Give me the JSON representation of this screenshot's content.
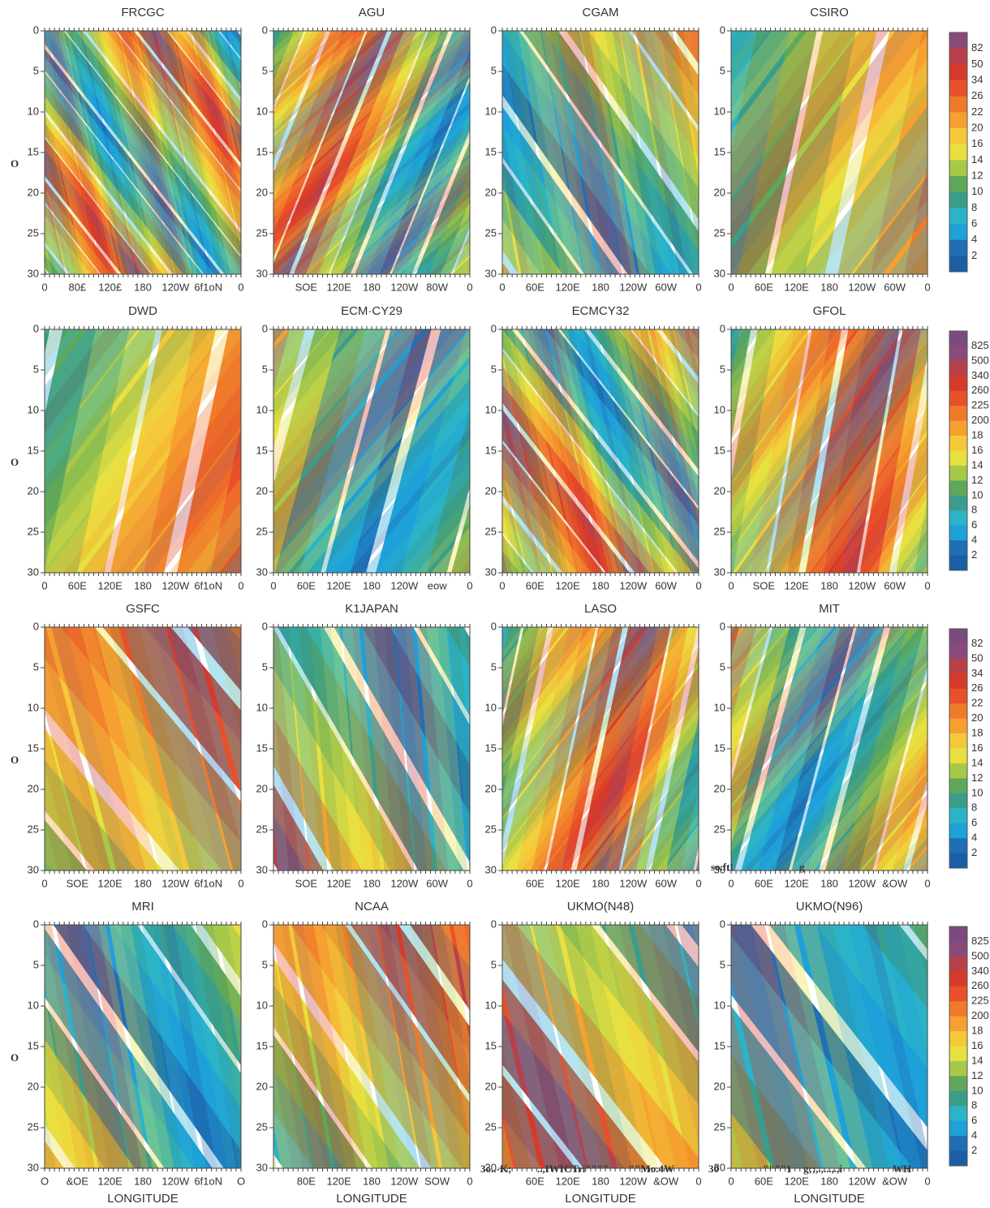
{
  "panels": [
    {
      "title": "FRCGC",
      "xticks": [
        "0",
        "80£",
        "120£",
        "180",
        "120W",
        "6f1oN",
        "0"
      ]
    },
    {
      "title": "AGU",
      "xticks": [
        "SOE",
        "120E",
        "180",
        "120W",
        "80W",
        "0"
      ]
    },
    {
      "title": "CGAM",
      "xticks": [
        "0",
        "60E",
        "120E",
        "180",
        "120W",
        "60W",
        "0"
      ]
    },
    {
      "title": "CSIRO",
      "xticks": [
        "0",
        "60E",
        "120E",
        "180",
        "120W",
        "60W",
        "0"
      ]
    },
    {
      "title": "DWD",
      "xticks": [
        "0",
        "60E",
        "120E",
        "180",
        "120W",
        "6f1oN",
        "0"
      ]
    },
    {
      "title": "ECM·CY29",
      "xticks": [
        "0",
        "60E",
        "120E",
        "180",
        "120W",
        "eow",
        "0"
      ]
    },
    {
      "title": "ECMCY32",
      "xticks": [
        "0",
        "60E",
        "120E",
        "180",
        "120W",
        "60W",
        "0"
      ]
    },
    {
      "title": "GFOL",
      "xticks": [
        "0",
        "SOE",
        "120E",
        "180",
        "120W",
        "60W",
        "0"
      ]
    },
    {
      "title": "GSFC",
      "xticks": [
        "0",
        "SOE",
        "120E",
        "180",
        "120W",
        "6f1oN",
        "0"
      ]
    },
    {
      "title": "K1JAPAN",
      "xticks": [
        "SOE",
        "120E",
        "180",
        "120W",
        "60W",
        "0"
      ]
    },
    {
      "title": "LASO",
      "xticks": [
        "60E",
        "120E",
        "180",
        "120W",
        "60W",
        "0"
      ]
    },
    {
      "title": "MIT",
      "xticks": [
        "0",
        "60E",
        "120E",
        "180",
        "120W",
        "&OW",
        "0"
      ]
    },
    {
      "title": "MRI",
      "xticks": [
        "O",
        "&OE",
        "120E",
        "180",
        "120W",
        "6f1oN",
        "O"
      ]
    },
    {
      "title": "NCAA",
      "xticks": [
        "80E",
        "120E",
        "180",
        "120W",
        "SOW",
        "0"
      ]
    },
    {
      "title": "UKMO(N48)",
      "xticks": [
        "60E",
        "120E",
        "180",
        "120W",
        "&OW",
        "0"
      ]
    },
    {
      "title": "UKMO(N96)",
      "xticks": [
        "0",
        "60E",
        "120E",
        "180",
        "120W",
        "&OW",
        "0"
      ]
    }
  ],
  "yticks": [
    0,
    5,
    10,
    15,
    20,
    25,
    30
  ],
  "row_labels": [
    "O",
    "O",
    "O",
    "O"
  ],
  "xlabel": "LONGITUDE",
  "colorbars": [
    [
      "82",
      "50",
      "34",
      "26",
      "22",
      "20",
      "16",
      "14",
      "12",
      "10",
      "8",
      "6",
      "4",
      "2"
    ],
    [
      "825",
      "500",
      "340",
      "260",
      "225",
      "200",
      "18",
      "16",
      "14",
      "12",
      "10",
      "8",
      "6",
      "4",
      "2"
    ],
    [
      "82",
      "50",
      "34",
      "26",
      "22",
      "20",
      "18",
      "16",
      "14",
      "12",
      "10",
      "8",
      "6",
      "4",
      "2"
    ],
    [
      "825",
      "500",
      "340",
      "260",
      "225",
      "200",
      "18",
      "16",
      "14",
      "12",
      "10",
      "8",
      "6",
      "4",
      "2"
    ]
  ],
  "notes": [
    "so.ft!",
    "g",
    "3o..-K;",
    "..,IWICTri\"\"\"\"",
    "\"\"Mo.4W",
    "30",
    "\"\"\"\"1",
    "g;;,.,...,.,i",
    "WH"
  ]
}
